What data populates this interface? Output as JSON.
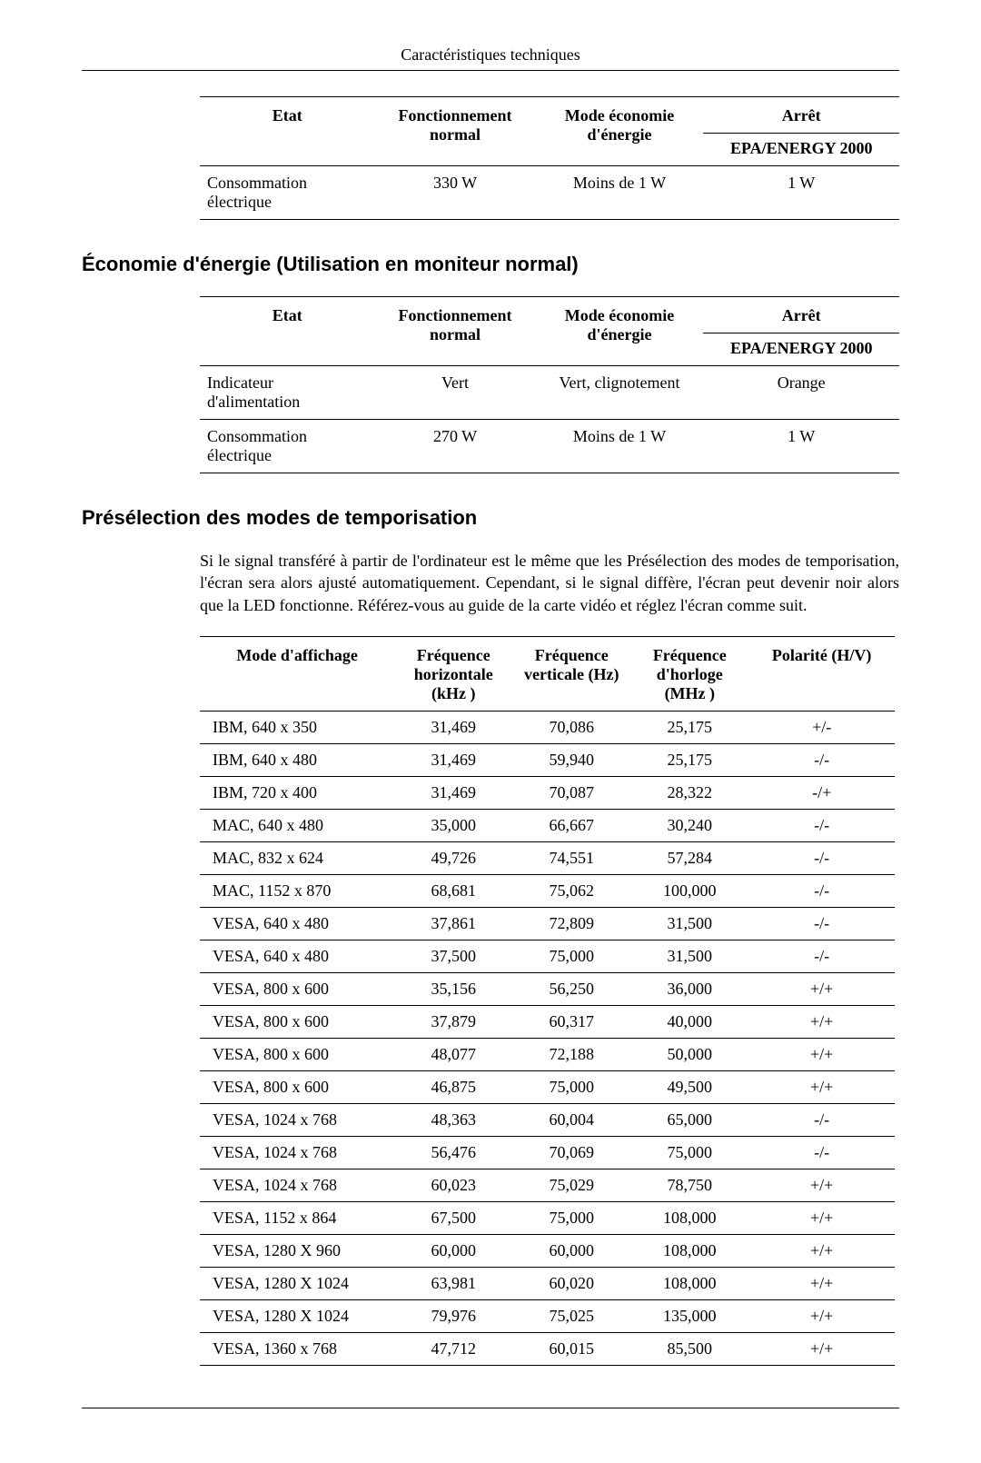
{
  "header_title": "Caractéristiques techniques",
  "table1": {
    "headers": {
      "etat": "Etat",
      "mode1": "Fonctionnement normal",
      "mode2": "Mode économie d'énergie",
      "mode3": "Arrêt",
      "sub3": "EPA/ENERGY 2000"
    },
    "rows": [
      {
        "label": "Consommation électrique",
        "v1": "330 W",
        "v2": "Moins de 1 W",
        "v3": "1 W"
      }
    ]
  },
  "section2_title": "Économie d'énergie (Utilisation en moniteur normal)",
  "table2": {
    "headers": {
      "etat": "Etat",
      "mode1": "Fonctionnement normal",
      "mode2": "Mode économie d'énergie",
      "mode3": "Arrêt",
      "sub3": "EPA/ENERGY 2000"
    },
    "rows": [
      {
        "label": "Indicateur d'alimentation",
        "v1": "Vert",
        "v2": "Vert, clignotement",
        "v3": "Orange"
      },
      {
        "label": "Consommation électrique",
        "v1": "270 W",
        "v2": "Moins de 1 W",
        "v3": "1 W"
      }
    ]
  },
  "section3_title": "Présélection des modes de temporisation",
  "section3_intro": "Si le signal transféré à partir de l'ordinateur est le même que les Présélection des modes de temporisation, l'écran sera alors ajusté automatiquement. Cependant, si le signal diffère, l'écran peut devenir noir alors que la LED fonctionne. Référez-vous au guide de la carte vidéo et réglez l'écran comme suit.",
  "timing": {
    "headers": {
      "mode": "Mode d'affichage",
      "hfreq": "Fréquence horizontale (kHz )",
      "vfreq": "Fréquence verticale (Hz)",
      "clock": "Fréquence d'horloge (MHz )",
      "pol": "Polarité (H/V)"
    },
    "col_widths": [
      "28%",
      "17%",
      "17%",
      "17%",
      "21%"
    ],
    "rows": [
      [
        "IBM, 640 x 350",
        "31,469",
        "70,086",
        "25,175",
        "+/-"
      ],
      [
        "IBM, 640 x 480",
        "31,469",
        "59,940",
        "25,175",
        "-/-"
      ],
      [
        "IBM, 720 x 400",
        "31,469",
        "70,087",
        "28,322",
        "-/+"
      ],
      [
        "MAC, 640 x 480",
        "35,000",
        "66,667",
        "30,240",
        "-/-"
      ],
      [
        "MAC, 832 x 624",
        "49,726",
        "74,551",
        "57,284",
        "-/-"
      ],
      [
        "MAC, 1152 x 870",
        "68,681",
        "75,062",
        "100,000",
        "-/-"
      ],
      [
        "VESA, 640 x 480",
        "37,861",
        "72,809",
        "31,500",
        "-/-"
      ],
      [
        "VESA, 640 x 480",
        "37,500",
        "75,000",
        "31,500",
        "-/-"
      ],
      [
        "VESA, 800 x 600",
        "35,156",
        "56,250",
        "36,000",
        "+/+"
      ],
      [
        "VESA, 800 x 600",
        "37,879",
        "60,317",
        "40,000",
        "+/+"
      ],
      [
        "VESA, 800 x 600",
        "48,077",
        "72,188",
        "50,000",
        "+/+"
      ],
      [
        "VESA, 800 x 600",
        "46,875",
        "75,000",
        "49,500",
        "+/+"
      ],
      [
        "VESA, 1024 x 768",
        "48,363",
        "60,004",
        "65,000",
        "-/-"
      ],
      [
        "VESA, 1024 x 768",
        "56,476",
        "70,069",
        "75,000",
        "-/-"
      ],
      [
        "VESA, 1024 x 768",
        "60,023",
        "75,029",
        "78,750",
        "+/+"
      ],
      [
        "VESA, 1152 x 864",
        "67,500",
        "75,000",
        "108,000",
        "+/+"
      ],
      [
        "VESA, 1280 X 960",
        "60,000",
        "60,000",
        "108,000",
        "+/+"
      ],
      [
        "VESA, 1280 X 1024",
        "63,981",
        "60,020",
        "108,000",
        "+/+"
      ],
      [
        "VESA, 1280 X 1024",
        "79,976",
        "75,025",
        "135,000",
        "+/+"
      ],
      [
        "VESA, 1360 x 768",
        "47,712",
        "60,015",
        "85,500",
        "+/+"
      ]
    ]
  }
}
